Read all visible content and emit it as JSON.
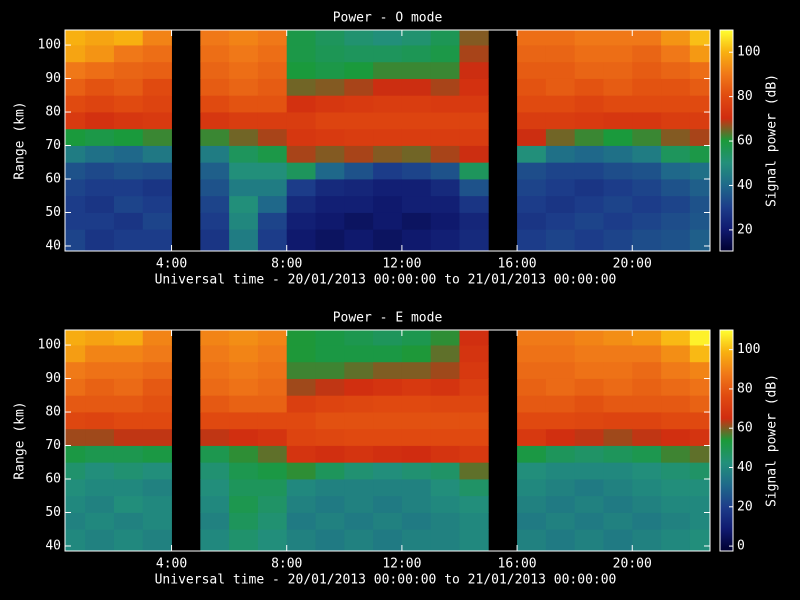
{
  "chart_data": [
    {
      "type": "heatmap",
      "title": "Power - O mode",
      "xlabel": "Universal time - 20/01/2013 00:00:00 to 21/01/2013 00:00:00",
      "ylabel": "Range (km)",
      "colorbar_label": "Signal power (dB)",
      "x_bins": [
        0.3,
        1,
        2,
        3,
        4,
        5,
        6,
        7,
        8,
        9,
        10,
        11,
        12,
        13,
        14,
        15,
        16,
        17,
        18,
        19,
        20,
        21,
        22,
        22.7
      ],
      "y_bins": [
        38.5,
        45,
        50,
        55,
        60,
        65,
        70,
        75,
        80,
        85,
        90,
        95,
        100,
        104.5
      ],
      "z": [
        [
          32,
          30,
          30,
          32,
          35,
          45,
          60,
          75,
          80,
          85,
          90,
          98,
          100
        ],
        [
          28,
          30,
          28,
          30,
          33,
          42,
          58,
          72,
          78,
          82,
          88,
          95,
          98
        ],
        [
          30,
          28,
          32,
          30,
          35,
          40,
          60,
          74,
          80,
          84,
          86,
          90,
          100
        ],
        [
          30,
          32,
          30,
          28,
          34,
          44,
          62,
          75,
          78,
          80,
          85,
          88,
          92
        ],
        null,
        [
          28,
          30,
          32,
          35,
          38,
          45,
          62,
          74,
          80,
          84,
          86,
          88,
          90
        ],
        [
          45,
          48,
          50,
          45,
          50,
          55,
          65,
          76,
          82,
          86,
          88,
          90,
          92
        ],
        [
          30,
          32,
          40,
          45,
          50,
          58,
          68,
          76,
          82,
          84,
          86,
          88,
          90
        ],
        [
          20,
          22,
          25,
          30,
          55,
          68,
          74,
          76,
          72,
          65,
          60,
          58,
          58
        ],
        [
          18,
          20,
          22,
          25,
          40,
          66,
          75,
          78,
          74,
          66,
          58,
          56,
          55
        ],
        [
          20,
          18,
          22,
          24,
          35,
          68,
          76,
          78,
          75,
          68,
          60,
          55,
          52
        ],
        [
          18,
          20,
          20,
          22,
          30,
          66,
          76,
          78,
          76,
          70,
          62,
          55,
          50
        ],
        [
          20,
          18,
          22,
          22,
          32,
          65,
          76,
          78,
          76,
          70,
          62,
          56,
          52
        ],
        [
          22,
          20,
          22,
          25,
          35,
          68,
          76,
          78,
          75,
          68,
          62,
          58,
          56
        ],
        [
          25,
          24,
          28,
          35,
          55,
          70,
          76,
          78,
          75,
          72,
          70,
          68,
          66
        ],
        null,
        [
          30,
          28,
          30,
          32,
          34,
          50,
          70,
          76,
          80,
          82,
          84,
          86,
          88
        ],
        [
          32,
          30,
          28,
          30,
          32,
          42,
          65,
          76,
          80,
          84,
          84,
          86,
          88
        ],
        [
          30,
          32,
          30,
          28,
          32,
          40,
          62,
          75,
          78,
          82,
          86,
          88,
          90
        ],
        [
          32,
          30,
          32,
          30,
          34,
          42,
          60,
          74,
          80,
          84,
          86,
          88,
          90
        ],
        [
          34,
          32,
          30,
          32,
          35,
          45,
          62,
          74,
          80,
          82,
          84,
          86,
          90
        ],
        [
          35,
          34,
          32,
          35,
          40,
          55,
          66,
          76,
          80,
          82,
          86,
          90,
          95
        ],
        [
          38,
          36,
          35,
          38,
          42,
          58,
          68,
          76,
          80,
          84,
          88,
          96,
          102
        ]
      ],
      "xlim": [
        0.3,
        22.7
      ],
      "ylim": [
        38.5,
        104.5
      ],
      "xticks": [
        {
          "value": 4,
          "label": "4:00"
        },
        {
          "value": 8,
          "label": "8:00"
        },
        {
          "value": 12,
          "label": "12:00"
        },
        {
          "value": 16,
          "label": "16:00"
        },
        {
          "value": 20,
          "label": "20:00"
        }
      ],
      "yticks": [
        40,
        50,
        60,
        70,
        80,
        90,
        100
      ],
      "clim": [
        10.5,
        110
      ],
      "cticks": [
        20,
        40,
        60,
        80,
        100
      ],
      "colormap": [
        "#000030",
        "#101a70",
        "#1d3d8a",
        "#1f6a8a",
        "#22907a",
        "#1a9a3a",
        "#d02c10",
        "#e04a10",
        "#f07818",
        "#f8b010",
        "#ffff30"
      ]
    },
    {
      "type": "heatmap",
      "title": "Power - E mode",
      "xlabel": "Universal time - 20/01/2013 00:00:00 to 21/01/2013 00:00:00",
      "ylabel": "Range (km)",
      "colorbar_label": "Signal power (dB)",
      "x_bins": [
        0.3,
        1,
        2,
        3,
        4,
        5,
        6,
        7,
        8,
        9,
        10,
        11,
        12,
        13,
        14,
        15,
        16,
        17,
        18,
        19,
        20,
        21,
        22,
        22.7
      ],
      "y_bins": [
        38.5,
        45,
        50,
        55,
        60,
        65,
        70,
        75,
        80,
        85,
        90,
        95,
        100,
        104.5
      ],
      "z": [
        [
          40,
          38,
          40,
          42,
          45,
          52,
          62,
          75,
          80,
          85,
          88,
          95,
          98
        ],
        [
          38,
          40,
          38,
          40,
          42,
          50,
          62,
          74,
          80,
          82,
          86,
          90,
          96
        ],
        [
          40,
          38,
          42,
          40,
          44,
          50,
          64,
          76,
          80,
          84,
          86,
          90,
          98
        ],
        [
          38,
          40,
          40,
          38,
          42,
          52,
          64,
          76,
          78,
          80,
          84,
          88,
          90
        ],
        null,
        [
          40,
          38,
          40,
          42,
          44,
          50,
          64,
          76,
          80,
          84,
          86,
          88,
          90
        ],
        [
          45,
          48,
          50,
          48,
          50,
          55,
          66,
          76,
          82,
          86,
          88,
          90,
          92
        ],
        [
          42,
          44,
          46,
          48,
          52,
          58,
          68,
          76,
          82,
          84,
          86,
          88,
          90
        ],
        [
          38,
          36,
          38,
          40,
          55,
          68,
          74,
          76,
          72,
          62,
          56,
          54,
          54
        ],
        [
          36,
          38,
          36,
          38,
          48,
          66,
          75,
          78,
          74,
          64,
          56,
          52,
          52
        ],
        [
          38,
          36,
          38,
          38,
          44,
          68,
          76,
          78,
          75,
          66,
          58,
          52,
          50
        ],
        [
          36,
          38,
          36,
          38,
          42,
          66,
          76,
          78,
          76,
          68,
          60,
          52,
          48
        ],
        [
          38,
          36,
          38,
          38,
          44,
          65,
          76,
          78,
          76,
          70,
          60,
          54,
          50
        ],
        [
          38,
          38,
          40,
          42,
          46,
          68,
          76,
          78,
          75,
          68,
          62,
          58,
          55
        ],
        [
          40,
          40,
          42,
          46,
          58,
          70,
          76,
          78,
          75,
          72,
          70,
          68,
          66
        ],
        null,
        [
          38,
          36,
          38,
          40,
          42,
          52,
          70,
          76,
          80,
          82,
          84,
          86,
          88
        ],
        [
          36,
          38,
          36,
          38,
          40,
          48,
          66,
          76,
          80,
          84,
          84,
          86,
          88
        ],
        [
          38,
          36,
          38,
          36,
          40,
          46,
          64,
          75,
          78,
          82,
          86,
          88,
          90
        ],
        [
          36,
          38,
          36,
          38,
          40,
          48,
          62,
          74,
          80,
          84,
          86,
          88,
          92
        ],
        [
          38,
          36,
          38,
          40,
          42,
          50,
          64,
          74,
          80,
          82,
          84,
          88,
          94
        ],
        [
          40,
          38,
          40,
          42,
          44,
          56,
          66,
          76,
          80,
          84,
          88,
          92,
          100
        ],
        [
          42,
          40,
          40,
          42,
          46,
          58,
          68,
          76,
          82,
          86,
          90,
          100,
          108
        ]
      ],
      "xlim": [
        0.3,
        22.7
      ],
      "ylim": [
        38.5,
        104.5
      ],
      "xticks": [
        {
          "value": 4,
          "label": "4:00"
        },
        {
          "value": 8,
          "label": "8:00"
        },
        {
          "value": 12,
          "label": "12:00"
        },
        {
          "value": 16,
          "label": "16:00"
        },
        {
          "value": 20,
          "label": "20:00"
        }
      ],
      "yticks": [
        40,
        50,
        60,
        70,
        80,
        90,
        100
      ],
      "clim": [
        -2.5,
        110
      ],
      "cticks": [
        0,
        20,
        40,
        60,
        80,
        100
      ],
      "colormap": [
        "#000030",
        "#101a70",
        "#1d3d8a",
        "#1f6a8a",
        "#22907a",
        "#1a9a3a",
        "#d02c10",
        "#e04a10",
        "#f07818",
        "#f8b010",
        "#ffff30"
      ]
    }
  ]
}
